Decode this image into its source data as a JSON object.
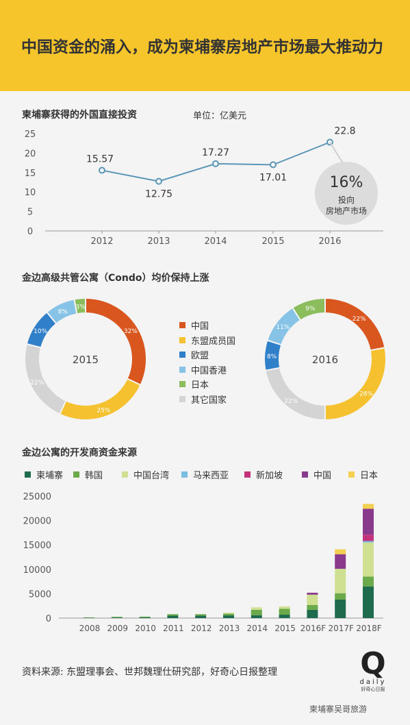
{
  "header": {
    "title": "中国资金的涌入，成为柬埔寨房地产市场最大推动力"
  },
  "section1": {
    "title": "柬埔寨获得的外国直接投资",
    "unit": "单位：亿美元"
  },
  "callout": {
    "percent": "16%",
    "line1": "投向",
    "line2": "房地产市场"
  },
  "section2": {
    "title": "金边高级共管公寓（Condo）均价保持上涨"
  },
  "section3": {
    "title": "金边公寓的开发商资金来源"
  },
  "source": "资料来源: 东盟理事会、世邦魏理仕研究部，好奇心日报整理",
  "logo": {
    "letter": "Q",
    "word": "daily",
    "sub": "好奇心日报"
  },
  "watermark": "柬埔寨吴哥旅游",
  "colors": {
    "orange": "#d9561f",
    "yellow": "#f5c12e",
    "blue": "#2f7fc9",
    "lightblue": "#86c3e6",
    "green": "#8bbd5c",
    "gray": "#d4d4d4",
    "line": "#5b96b7",
    "darkgreen": "#1e6b4e",
    "midgreen": "#6aaa4b",
    "lightgreen": "#cfe093",
    "skyblue": "#79bde0",
    "magenta": "#c2337c",
    "purple": "#8a3a8c",
    "gold": "#f3d050"
  },
  "chart_data": [
    {
      "type": "line",
      "title": "柬埔寨获得的外国直接投资",
      "unit": "单位：亿美元",
      "x": [
        "2012",
        "2013",
        "2014",
        "2015",
        "2016"
      ],
      "values": [
        15.57,
        12.75,
        17.27,
        17.01,
        22.8
      ],
      "labels": [
        "15.57",
        "12.75",
        "17.27",
        "17.01",
        "22.8"
      ],
      "ylim": [
        0,
        25
      ],
      "yticks": [
        "0",
        "5",
        "10",
        "15",
        "20",
        "25"
      ],
      "grid": false
    },
    {
      "type": "pie",
      "title": "金边高级共管公寓（Condo）均价保持上涨",
      "legend": [
        "中国",
        "东盟成员国",
        "欧盟",
        "中国香港",
        "日本",
        "其它国家"
      ],
      "charts": [
        {
          "center_label": "2015",
          "values": [
            32,
            25,
            22,
            10,
            8,
            3
          ],
          "labels": [
            "32%",
            "25%",
            "22%",
            "10%",
            "8%",
            "3%"
          ],
          "categories": [
            "中国",
            "东盟成员国",
            "其它国家",
            "欧盟",
            "中国香港",
            "日本"
          ]
        },
        {
          "center_label": "2016",
          "values": [
            22,
            28,
            22,
            8,
            11,
            9
          ],
          "labels": [
            "22%",
            "28%",
            "22%",
            "8%",
            "11%",
            "9%"
          ],
          "categories": [
            "中国",
            "东盟成员国",
            "其它国家",
            "欧盟",
            "中国香港",
            "日本"
          ]
        }
      ]
    },
    {
      "type": "bar",
      "stacked": true,
      "title": "金边公寓的开发商资金来源",
      "categories": [
        "2008",
        "2009",
        "2010",
        "2011",
        "2012",
        "2013",
        "2014",
        "2015",
        "2016F",
        "2017F",
        "2018F"
      ],
      "ylim": [
        0,
        25000
      ],
      "yticks": [
        "0",
        "5000",
        "10000",
        "15000",
        "20000",
        "25000"
      ],
      "series": [
        {
          "name": "柬埔寨",
          "values": [
            50,
            120,
            150,
            500,
            500,
            550,
            600,
            700,
            1700,
            3800,
            6500
          ]
        },
        {
          "name": "韩国",
          "values": [
            100,
            150,
            150,
            300,
            300,
            350,
            1100,
            1200,
            1000,
            1300,
            2000
          ]
        },
        {
          "name": "中国台湾",
          "values": [
            0,
            0,
            0,
            0,
            0,
            200,
            500,
            500,
            2100,
            5000,
            7000
          ]
        },
        {
          "name": "马来西亚",
          "values": [
            0,
            0,
            0,
            0,
            0,
            0,
            0,
            0,
            0,
            0,
            300
          ]
        },
        {
          "name": "新加坡",
          "values": [
            0,
            0,
            0,
            0,
            0,
            0,
            0,
            0,
            0,
            0,
            1300
          ]
        },
        {
          "name": "中国",
          "values": [
            0,
            0,
            0,
            0,
            0,
            0,
            0,
            0,
            400,
            3000,
            5300
          ]
        },
        {
          "name": "日本",
          "values": [
            0,
            0,
            0,
            0,
            0,
            0,
            0,
            0,
            0,
            1000,
            1000
          ]
        }
      ]
    }
  ]
}
